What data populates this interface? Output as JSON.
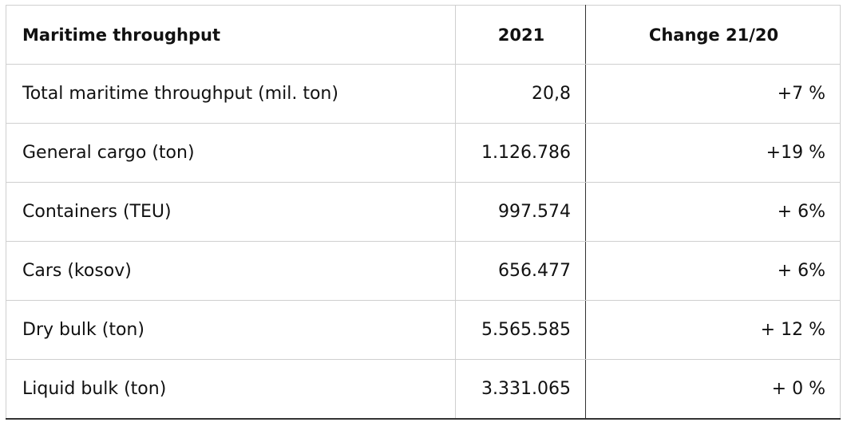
{
  "table": {
    "headers": [
      "Maritime throughput",
      "2021",
      "Change 21/20"
    ],
    "rows": [
      {
        "label": "Total maritime throughput (mil. ton)",
        "value": "20,8",
        "change": "+7 %"
      },
      {
        "label": "General cargo (ton)",
        "value": "1.126.786",
        "change": "+19 %"
      },
      {
        "label": "Containers (TEU)",
        "value": "997.574",
        "change": "+ 6%"
      },
      {
        "label": "Cars (kosov)",
        "value": "656.477",
        "change": "+ 6%"
      },
      {
        "label": "Dry bulk (ton)",
        "value": "5.565.585",
        "change": "+ 12 %"
      },
      {
        "label": "Liquid bulk (ton)",
        "value": "3.331.065",
        "change": "+ 0 %"
      }
    ]
  }
}
